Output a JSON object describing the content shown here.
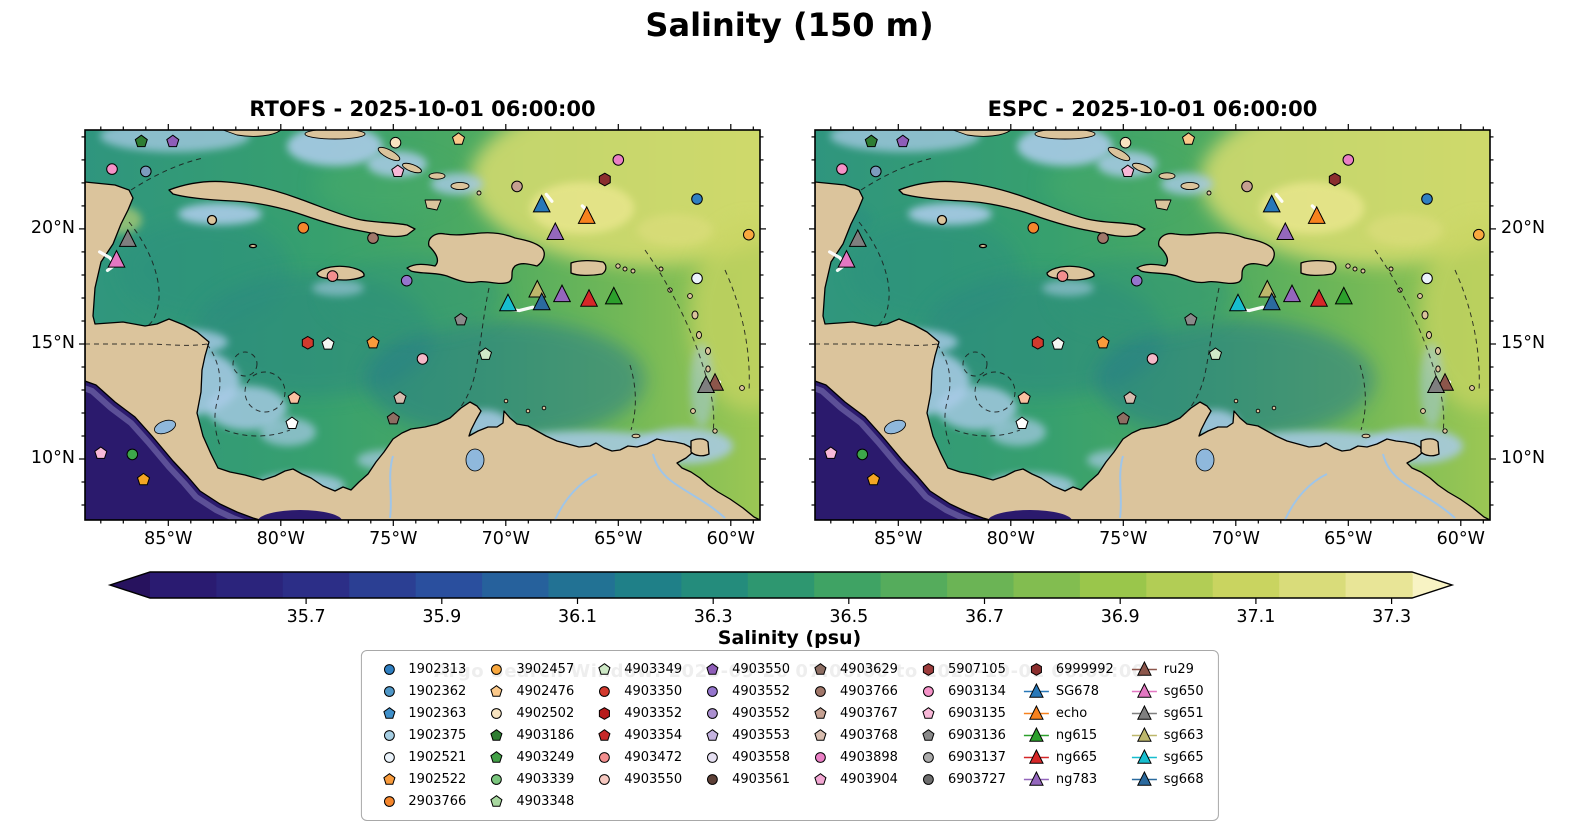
{
  "figure": {
    "title": "Salinity (150 m)",
    "watermark": "Argo Search Window: 2025-09-26 07:00:00 to 2025-10-01 06:00:00"
  },
  "panels": [
    {
      "id": "rtofs",
      "model": "RTOFS",
      "title": "RTOFS - 2025-10-01 06:00:00",
      "lat_labels_side": "left"
    },
    {
      "id": "espc",
      "model": "ESPC",
      "title": "ESPC - 2025-10-01 06:00:00",
      "lat_labels_side": "right"
    }
  ],
  "axes": {
    "lon_ticks": [
      {
        "value": 85,
        "label": "85°W"
      },
      {
        "value": 80,
        "label": "80°W"
      },
      {
        "value": 75,
        "label": "75°W"
      },
      {
        "value": 70,
        "label": "70°W"
      },
      {
        "value": 65,
        "label": "65°W"
      },
      {
        "value": 60,
        "label": "60°W"
      }
    ],
    "lat_ticks": [
      {
        "value": 20,
        "label": "20°N"
      },
      {
        "value": 15,
        "label": "15°N"
      },
      {
        "value": 10,
        "label": "10°N"
      }
    ]
  },
  "colorbar": {
    "label": "Salinity (psu)",
    "tick_values": [
      35.7,
      35.9,
      36.1,
      36.3,
      36.5,
      36.7,
      36.9,
      37.1,
      37.3
    ],
    "tick_labels": [
      "35.7",
      "35.9",
      "36.1",
      "36.3",
      "36.5",
      "36.7",
      "36.9",
      "37.1",
      "37.3"
    ],
    "range": [
      35.47,
      37.33
    ],
    "extend": "both",
    "left_arrow_color": "#27125e",
    "right_arrow_color": "#f8f3c4",
    "colormap_stops": [
      [
        35.47,
        "#2a166b"
      ],
      [
        35.7,
        "#2c2c85"
      ],
      [
        35.9,
        "#2a4d9e"
      ],
      [
        36.05,
        "#24699b"
      ],
      [
        36.2,
        "#1f8089"
      ],
      [
        36.35,
        "#269176"
      ],
      [
        36.5,
        "#3fa364"
      ],
      [
        36.7,
        "#6cb554"
      ],
      [
        36.9,
        "#9dc74b"
      ],
      [
        37.1,
        "#cdd562"
      ],
      [
        37.3,
        "#ebe79c"
      ],
      [
        37.33,
        "#f4efb4"
      ]
    ]
  },
  "legend": {
    "columns": [
      [
        {
          "label": "1902313",
          "shape": "circle",
          "color": "#2f7fc1"
        },
        {
          "label": "1902362",
          "shape": "circle",
          "color": "#4f97c7"
        },
        {
          "label": "1902363",
          "shape": "pentagon",
          "color": "#3f8fc9"
        },
        {
          "label": "1902375",
          "shape": "circle",
          "color": "#a6cee3"
        },
        {
          "label": "1902521",
          "shape": "circle",
          "color": "#eaf3fb"
        },
        {
          "label": "1902522",
          "shape": "pentagon",
          "color": "#f89b3c"
        },
        {
          "label": "2903766",
          "shape": "circle",
          "color": "#f5862c"
        }
      ],
      [
        {
          "label": "3902457",
          "shape": "circle",
          "color": "#f9a83e"
        },
        {
          "label": "4902476",
          "shape": "pentagon",
          "color": "#fbc98a"
        },
        {
          "label": "4902502",
          "shape": "circle",
          "color": "#f7e3c0"
        },
        {
          "label": "4903186",
          "shape": "pentagon",
          "color": "#2e7d32"
        },
        {
          "label": "4903249",
          "shape": "pentagon",
          "color": "#43a047"
        },
        {
          "label": "4903339",
          "shape": "circle",
          "color": "#7bc67e"
        },
        {
          "label": "4903348",
          "shape": "pentagon",
          "color": "#a8d8a0"
        }
      ],
      [
        {
          "label": "4903349",
          "shape": "pentagon",
          "color": "#cde8c5"
        },
        {
          "label": "4903350",
          "shape": "circle",
          "color": "#d23a2e"
        },
        {
          "label": "4903352",
          "shape": "hexagon",
          "color": "#b71c1c"
        },
        {
          "label": "4903354",
          "shape": "pentagon",
          "color": "#c62828"
        },
        {
          "label": "4903472",
          "shape": "circle",
          "color": "#f28e8e"
        },
        {
          "label": "4903550",
          "shape": "circle",
          "color": "#f6c8c0"
        }
      ],
      [
        {
          "label": "4903550",
          "shape": "pentagon",
          "color": "#8e5db8"
        },
        {
          "label": "4903552",
          "shape": "circle",
          "color": "#9575cd"
        },
        {
          "label": "4903552",
          "shape": "circle",
          "color": "#ab8fd0"
        },
        {
          "label": "4903553",
          "shape": "pentagon",
          "color": "#c5b3e0"
        },
        {
          "label": "4903558",
          "shape": "circle",
          "color": "#e6e0f2"
        },
        {
          "label": "4903561",
          "shape": "circle",
          "color": "#5d4037"
        }
      ],
      [
        {
          "label": "4903629",
          "shape": "pentagon",
          "color": "#8d6e63"
        },
        {
          "label": "4903766",
          "shape": "circle",
          "color": "#a1776a"
        },
        {
          "label": "4903767",
          "shape": "pentagon",
          "color": "#c5a091"
        },
        {
          "label": "4903768",
          "shape": "pentagon",
          "color": "#d7bcae"
        },
        {
          "label": "4903898",
          "shape": "circle",
          "color": "#ea7fc5"
        },
        {
          "label": "4903904",
          "shape": "pentagon",
          "color": "#f2a7d3"
        }
      ],
      [
        {
          "label": "5907105",
          "shape": "hexagon",
          "color": "#9c3c3c"
        },
        {
          "label": "6903134",
          "shape": "circle",
          "color": "#f592c8"
        },
        {
          "label": "6903135",
          "shape": "pentagon",
          "color": "#f8b8d8"
        },
        {
          "label": "6903136",
          "shape": "pentagon",
          "color": "#8a8a8a"
        },
        {
          "label": "6903137",
          "shape": "circle",
          "color": "#ababab"
        },
        {
          "label": "6903727",
          "shape": "circle",
          "color": "#6e6e6e"
        }
      ],
      [
        {
          "label": "6999992",
          "shape": "hexagon",
          "color": "#8b2e2e"
        },
        {
          "label": "SG678",
          "shape": "triangle",
          "color": "#2878b8"
        },
        {
          "label": "echo",
          "shape": "triangle",
          "color": "#f8821e"
        },
        {
          "label": "ng615",
          "shape": "triangle",
          "color": "#2ca02c"
        },
        {
          "label": "ng665",
          "shape": "triangle",
          "color": "#d62728"
        },
        {
          "label": "ng783",
          "shape": "triangle",
          "color": "#9467bd"
        }
      ],
      [
        {
          "label": "ru29",
          "shape": "triangle",
          "color": "#8c564b"
        },
        {
          "label": "sg650",
          "shape": "triangle",
          "color": "#e377c2"
        },
        {
          "label": "sg651",
          "shape": "triangle",
          "color": "#7f7f7f"
        },
        {
          "label": "sg663",
          "shape": "triangle",
          "color": "#bdb76b"
        },
        {
          "label": "sg665",
          "shape": "triangle",
          "color": "#17becf"
        },
        {
          "label": "sg668",
          "shape": "triangle",
          "color": "#2b6a9e"
        }
      ]
    ]
  },
  "chart_data": {
    "type": "heatmap",
    "subtype": "geographic salinity field comparison with platform scatter overlay",
    "title": "Salinity (150 m)",
    "units": "psu",
    "panels": [
      "RTOFS - 2025-10-01 06:00:00",
      "ESPC - 2025-10-01 06:00:00"
    ],
    "lon_range_W": [
      88.7,
      58.7
    ],
    "lat_range_N": [
      24.3,
      7.35
    ],
    "value_range": [
      35.47,
      37.33
    ],
    "field_summary": "Caribbean Sea mostly 36.4-36.8 psu (green); tropical Atlantic northeast corner 37.0-37.3 (yellow-green); shallow banks light blue; eastern Pacific corner < 35.7 (dark indigo)",
    "marker_fields": [
      "platform",
      "shape",
      "color",
      "lon_W",
      "lat_N"
    ],
    "markers": [
      [
        "4903186",
        "pentagon",
        "#2e7d32",
        86.2,
        23.8
      ],
      [
        "4903550",
        "pentagon",
        "#8e5db8",
        84.8,
        23.8
      ],
      [
        "6903134",
        "circle",
        "#f592c8",
        87.5,
        22.6
      ],
      [
        "1902362",
        "circle",
        "#7d9bbd",
        86.0,
        22.5
      ],
      [
        "4902502",
        "circle",
        "#f7e3c0",
        74.9,
        23.75
      ],
      [
        "4902476",
        "pentagon",
        "#fbc98a",
        72.1,
        23.9
      ],
      [
        "6903135",
        "pentagon",
        "#f8b8d8",
        74.8,
        22.5
      ],
      [
        "4903767",
        "circle",
        "#c5a091",
        69.5,
        21.85
      ],
      [
        "4903898",
        "circle",
        "#ea7fc5",
        65.0,
        23.0
      ],
      [
        "6999992",
        "hexagon",
        "#8b2e2e",
        65.6,
        22.15
      ],
      [
        "SG678",
        "triangle",
        "#2878b8",
        68.4,
        21.05
      ],
      [
        "echo",
        "triangle",
        "#f8821e",
        66.4,
        20.55
      ],
      [
        "1902313",
        "circle",
        "#2f7fc1",
        61.5,
        21.3
      ],
      [
        "ng783",
        "triangle",
        "#9467bd",
        67.8,
        19.85
      ],
      [
        "3902457",
        "circle",
        "#f9a83e",
        59.2,
        19.75
      ],
      [
        "sg651",
        "triangle",
        "#7f7f7f",
        86.8,
        19.55
      ],
      [
        "sg650",
        "triangle",
        "#e377c2",
        87.3,
        18.65
      ],
      [
        "2903766",
        "circle",
        "#f5862c",
        79.0,
        20.05
      ],
      [
        "4903766",
        "circle",
        "#a1776a",
        75.9,
        19.6
      ],
      [
        "4903472",
        "circle",
        "#f28e8e",
        77.7,
        17.95
      ],
      [
        "4903552",
        "circle",
        "#9575cd",
        74.4,
        17.75
      ],
      [
        "sg663",
        "triangle",
        "#bdb76b",
        68.6,
        17.35
      ],
      [
        "ng783",
        "triangle",
        "#9467bd",
        67.5,
        17.15
      ],
      [
        "sg665",
        "triangle",
        "#17becf",
        69.9,
        16.75
      ],
      [
        "sg668",
        "triangle",
        "#2b6a9e",
        68.4,
        16.8
      ],
      [
        "ng665",
        "triangle",
        "#d62728",
        66.3,
        16.95
      ],
      [
        "ng615",
        "triangle",
        "#2ca02c",
        65.2,
        17.05
      ],
      [
        "1902521",
        "circle",
        "#eaf3fb",
        61.5,
        17.85
      ],
      [
        "6903136",
        "pentagon",
        "#8a8a8a",
        72.0,
        16.05
      ],
      [
        "4903352",
        "hexagon",
        "#d23a2e",
        78.8,
        15.05
      ],
      [
        "4903349",
        "pentagon",
        "#f4f7f2",
        77.9,
        15.0
      ],
      [
        "1902522",
        "pentagon",
        "#f89b3c",
        75.9,
        15.05
      ],
      [
        "4903550",
        "circle",
        "#f6b8c8",
        73.7,
        14.35
      ],
      [
        "4903348",
        "pentagon",
        "#cfe8c8",
        70.9,
        14.55
      ],
      [
        "ru29",
        "triangle",
        "#8c564b",
        60.7,
        13.3
      ],
      [
        "sg651",
        "triangle",
        "#7f7f7f",
        61.1,
        13.2
      ],
      [
        "4903904",
        "pentagon",
        "#f8c0a0",
        79.4,
        12.65
      ],
      [
        "4903768",
        "pentagon",
        "#d7bcae",
        74.7,
        12.65
      ],
      [
        "4903629",
        "pentagon",
        "#8d6e63",
        75.0,
        11.75
      ],
      [
        "4903349",
        "pentagon",
        "#ffffff",
        79.5,
        11.55
      ],
      [
        "6903135",
        "pentagon",
        "#f8b8d8",
        88.0,
        10.25
      ],
      [
        "4903339",
        "circle",
        "#3da64a",
        86.6,
        10.2
      ],
      [
        "1902522",
        "pentagon",
        "#f5a623",
        86.1,
        9.1
      ]
    ],
    "tracks": [
      [
        [
          88.05,
          19.0
        ],
        [
          87.6,
          18.75
        ],
        [
          87.35,
          18.45
        ],
        [
          87.7,
          18.2
        ]
      ],
      [
        [
          66.6,
          21.0
        ],
        [
          66.3,
          20.7
        ],
        [
          66.55,
          20.35
        ]
      ],
      [
        [
          70.1,
          16.55
        ],
        [
          69.4,
          16.45
        ],
        [
          68.8,
          16.6
        ]
      ],
      [
        [
          61.35,
          12.95
        ],
        [
          60.95,
          13.05
        ],
        [
          60.5,
          13.35
        ]
      ],
      [
        [
          68.2,
          21.5
        ],
        [
          67.95,
          21.2
        ]
      ]
    ]
  }
}
